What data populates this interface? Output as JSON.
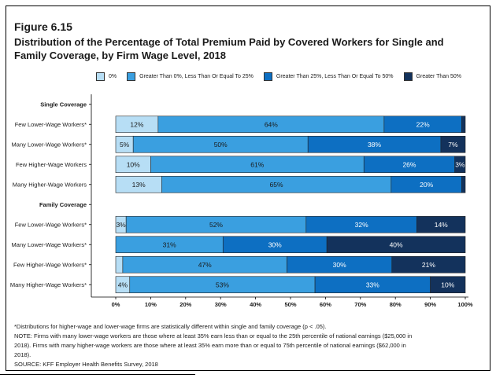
{
  "figure_label": "Figure 6.15",
  "title": "Distribution of the Percentage of Total Premium Paid by Covered Workers for Single and Family Coverage, by Firm Wage Level, 2018",
  "chart_data": {
    "type": "bar",
    "orientation": "horizontal",
    "stacked": true,
    "xlim": [
      0,
      100
    ],
    "x_ticks": [
      "0%",
      "10%",
      "20%",
      "30%",
      "40%",
      "50%",
      "60%",
      "70%",
      "80%",
      "90%",
      "100%"
    ],
    "legend_position": "top",
    "groups": [
      {
        "label": "Single Coverage",
        "rows": [
          {
            "label": "Few Lower-Wage Workers*",
            "values": [
              12,
              64,
              22,
              1
            ],
            "labels": [
              "12%",
              "64%",
              "22%",
              ""
            ]
          },
          {
            "label": "Many Lower-Wage Workers*",
            "values": [
              5,
              50,
              38,
              7
            ],
            "labels": [
              "5%",
              "50%",
              "38%",
              "7%"
            ]
          },
          {
            "label": "Few Higher-Wage Workers",
            "values": [
              10,
              61,
              26,
              3
            ],
            "labels": [
              "10%",
              "61%",
              "26%",
              "3%"
            ]
          },
          {
            "label": "Many Higher-Wage Workers",
            "values": [
              13,
              65,
              20,
              1
            ],
            "labels": [
              "13%",
              "65%",
              "20%",
              ""
            ]
          }
        ]
      },
      {
        "label": "Family Coverage",
        "rows": [
          {
            "label": "Few Lower-Wage Workers*",
            "values": [
              3,
              52,
              32,
              14
            ],
            "labels": [
              "3%",
              "52%",
              "32%",
              "14%"
            ]
          },
          {
            "label": "Many Lower-Wage Workers*",
            "values": [
              0,
              31,
              30,
              40
            ],
            "labels": [
              "",
              "31%",
              "30%",
              "40%"
            ]
          },
          {
            "label": "Few Higher-Wage Workers*",
            "values": [
              2,
              47,
              30,
              21
            ],
            "labels": [
              "",
              "47%",
              "30%",
              "21%"
            ]
          },
          {
            "label": "Many Higher-Wage Workers*",
            "values": [
              4,
              53,
              33,
              10
            ],
            "labels": [
              "4%",
              "53%",
              "33%",
              "10%"
            ]
          }
        ]
      }
    ],
    "series": [
      {
        "name": "0%",
        "color": "#b7def5",
        "text_color": "#1a1a1a"
      },
      {
        "name": "Greater Than 0%, Less Than Or Equal To 25%",
        "color": "#3a9fe0",
        "text_color": "#1a1a1a"
      },
      {
        "name": "Greater Than 25%, Less Than Or Equal To 50%",
        "color": "#0d6fc2",
        "text_color": "#ffffff"
      },
      {
        "name": "Greater Than 50%",
        "color": "#13325c",
        "text_color": "#ffffff"
      }
    ]
  },
  "notes": [
    "*Distributions for higher-wage and lower-wage firms are statistically different within single and family coverage (p < .05).",
    "NOTE: Firms with many lower-wage workers are those where at least 35% earn less than or equal to the 25th percentile of national earnings ($25,000 in",
    "2018). Firms with many higher-wage workers are those where at least 35% earn more than or equal to 75th percentile of national earnings ($62,000 in",
    "2018).",
    "SOURCE: KFF Employer Health Benefits Survey, 2018"
  ]
}
